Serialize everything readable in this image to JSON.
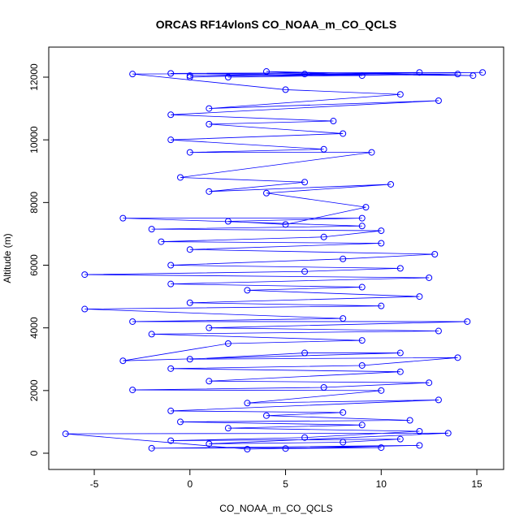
{
  "chart_data": {
    "type": "scatter",
    "lines": true,
    "title": "ORCAS RF14vlonS CO_NOAA_m_CO_QCLS",
    "x_label": "CO_NOAA_m_CO_QCLS",
    "y_label": "Altitude (m)",
    "color": "#0000ff",
    "xlim": [
      -7.38,
      16.4
    ],
    "ylim": [
      -518,
      12959
    ],
    "xticks": [
      -5,
      0,
      5,
      10,
      15
    ],
    "yticks": [
      0,
      2000,
      4000,
      6000,
      8000,
      10000,
      12000
    ],
    "x": [
      5,
      10,
      -2,
      12,
      3,
      -6.5,
      13.5,
      1,
      8,
      11,
      -1,
      6,
      12,
      2,
      9,
      -0.5,
      11.5,
      4,
      8,
      -1,
      13,
      3,
      10,
      -3,
      7,
      12.5,
      1,
      11,
      -1,
      9,
      14,
      0,
      6,
      11,
      -3.5,
      2,
      9,
      -2,
      13,
      1,
      14.5,
      -3,
      8,
      -5.5,
      10,
      0,
      12,
      3,
      9,
      -1,
      12.5,
      -5.5,
      6,
      11,
      -1,
      8,
      12.8,
      0,
      10,
      -1.5,
      7,
      10,
      -2,
      9,
      -3.5,
      9,
      2,
      5,
      9.2,
      4,
      10.5,
      1,
      6,
      -0.5,
      9.5,
      0,
      7,
      -1,
      8,
      1,
      7.5,
      -1,
      13,
      1,
      11,
      5,
      -3,
      15.3,
      0,
      14,
      2,
      12,
      -1,
      9,
      4,
      14.8,
      6,
      0
    ],
    "y": [
      150,
      180,
      160,
      250,
      130,
      620,
      640,
      300,
      350,
      450,
      400,
      500,
      700,
      800,
      900,
      1000,
      1050,
      1200,
      1300,
      1350,
      1700,
      1600,
      2000,
      2020,
      2100,
      2250,
      2300,
      2600,
      2700,
      2800,
      3050,
      3000,
      3200,
      3200,
      2950,
      3500,
      3600,
      3800,
      3900,
      4000,
      4200,
      4200,
      4300,
      4600,
      4700,
      4800,
      5000,
      5200,
      5300,
      5400,
      5600,
      5700,
      5800,
      5900,
      6000,
      6200,
      6350,
      6500,
      6700,
      6750,
      6900,
      7100,
      7150,
      7250,
      7500,
      7500,
      7400,
      7300,
      7850,
      8300,
      8580,
      8350,
      8650,
      8800,
      9600,
      9600,
      9700,
      10000,
      10200,
      10500,
      10600,
      10800,
      11250,
      11000,
      11450,
      11600,
      12100,
      12150,
      12050,
      12100,
      12000,
      12150,
      12120,
      12050,
      12180,
      12050,
      12100,
      12000
    ]
  }
}
